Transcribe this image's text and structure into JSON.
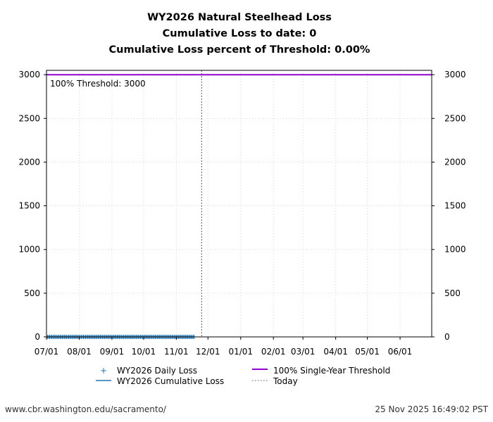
{
  "chart_data": {
    "type": "line",
    "title": [
      "WY2026 Natural Steelhead Loss",
      "Cumulative Loss to date: 0",
      "Cumulative Loss percent of Threshold: 0.00%"
    ],
    "xlabel": "",
    "ylabel": "",
    "xlim": [
      "2025-07-01",
      "2026-06-30"
    ],
    "ylim": [
      0,
      3050
    ],
    "x_ticks": [
      {
        "date": "2025-07-01",
        "label": "07/01"
      },
      {
        "date": "2025-08-01",
        "label": "08/01"
      },
      {
        "date": "2025-09-01",
        "label": "09/01"
      },
      {
        "date": "2025-10-01",
        "label": "10/01"
      },
      {
        "date": "2025-11-01",
        "label": "11/01"
      },
      {
        "date": "2025-12-01",
        "label": "12/01"
      },
      {
        "date": "2026-01-01",
        "label": "01/01"
      },
      {
        "date": "2026-02-01",
        "label": "02/01"
      },
      {
        "date": "2026-03-01",
        "label": "03/01"
      },
      {
        "date": "2026-04-01",
        "label": "04/01"
      },
      {
        "date": "2026-05-01",
        "label": "05/01"
      },
      {
        "date": "2026-06-01",
        "label": "06/01"
      }
    ],
    "y_ticks": [
      0,
      500,
      1000,
      1500,
      2000,
      2500,
      3000
    ],
    "grid": true,
    "series": [
      {
        "name": "WY2026 Daily Loss",
        "kind": "markers",
        "marker": "+",
        "color": "#1f77b4",
        "start": "2025-07-01",
        "end": "2025-11-18",
        "daily_value": 0
      },
      {
        "name": "WY2026 Cumulative Loss",
        "kind": "line",
        "color": "#1f77b4",
        "start": "2025-07-01",
        "end": "2025-11-18",
        "daily_value": 0
      },
      {
        "name": "100% Single-Year Threshold",
        "kind": "hline",
        "color": "#9400d3",
        "value": 3000
      },
      {
        "name": "Today",
        "kind": "vline",
        "style": "dotted",
        "color": "#555555",
        "date": "2025-11-25"
      }
    ],
    "annotation": "100% Threshold: 3000",
    "legend_placement": "bottom"
  },
  "footer": {
    "url": "www.cbr.washington.edu/sacramento/",
    "timestamp": "25 Nov 2025 16:49:02 PST"
  }
}
